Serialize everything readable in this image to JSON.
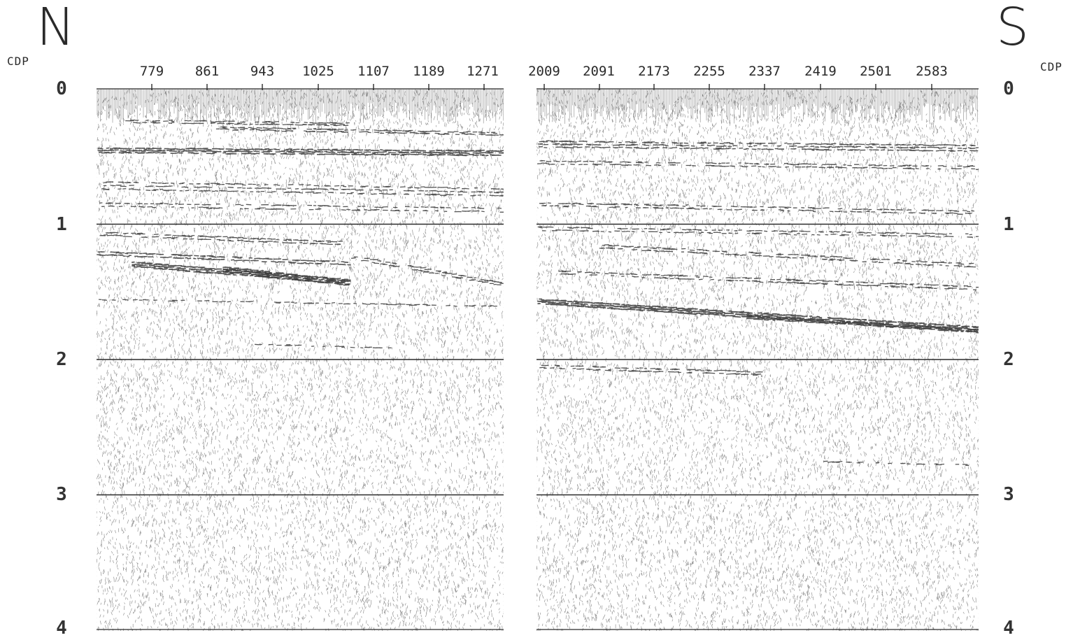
{
  "north_label": "N",
  "south_label": "S",
  "cdp_axis_label": "CDP",
  "time_ticks": [
    "0",
    "1",
    "2",
    "3",
    "4"
  ],
  "left_panel": {
    "cdp_labels": [
      "779",
      "861",
      "943",
      "1025",
      "1107",
      "1189",
      "1271"
    ]
  },
  "right_panel": {
    "cdp_labels": [
      "2009",
      "2091",
      "2173",
      "2255",
      "2337",
      "2419",
      "2501",
      "2583"
    ]
  },
  "colors": {
    "background": "#ffffff",
    "trace_ink": "#3a3a3a",
    "timing_line": "#2a2a2a"
  }
}
